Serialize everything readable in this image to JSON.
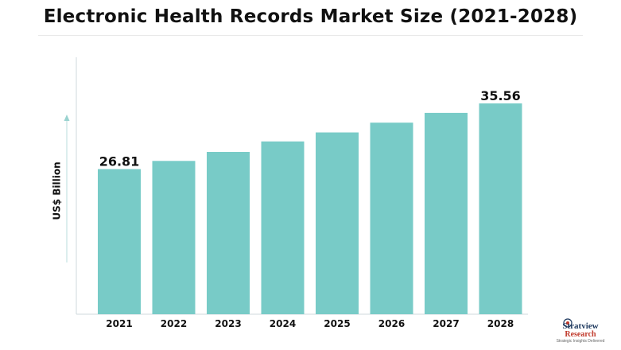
{
  "title": "Electronic Health Records Market Size (2021-2028)",
  "chart_data": {
    "type": "bar",
    "title": "Electronic Health Records Market Size (2021-2028)",
    "ylabel": "US$ Billion",
    "xlabel": "",
    "categories": [
      "2021",
      "2022",
      "2023",
      "2024",
      "2025",
      "2026",
      "2027",
      "2028"
    ],
    "values": [
      26.81,
      27.9,
      29.1,
      30.5,
      31.7,
      33.0,
      34.3,
      35.56
    ],
    "data_labels": [
      {
        "category": "2021",
        "text": "26.81"
      },
      {
        "category": "2028",
        "text": "35.56"
      }
    ],
    "ylim": [
      7.5,
      37
    ],
    "grid": false,
    "bar_color": "#78cbc7"
  },
  "logo": {
    "name": "Stratview",
    "sub": "Research",
    "tagline": "Strategic Insights Delivered"
  }
}
